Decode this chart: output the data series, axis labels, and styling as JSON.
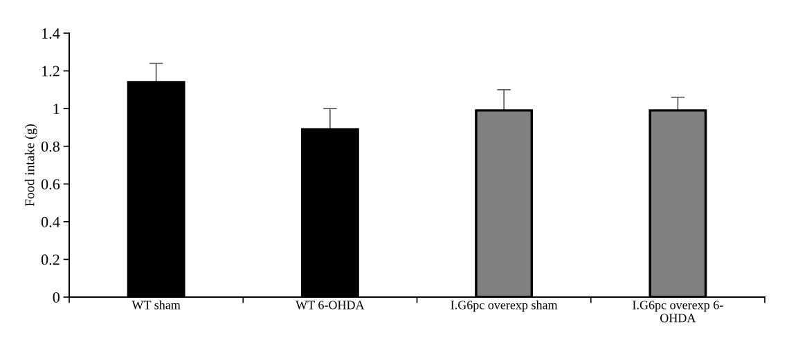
{
  "chart_data": {
    "type": "bar",
    "ylabel": "Food intake (g)",
    "categories": [
      "WT sham",
      "WT 6-OHDA",
      "I.G6pc overexp sham",
      "I.G6pc overexp 6-\nOHDA"
    ],
    "values": [
      1.14,
      0.89,
      0.99,
      0.99
    ],
    "colors": [
      "#000000",
      "#000000",
      "#808080",
      "#808080"
    ],
    "errors": [
      [
        1.14,
        1.24
      ],
      [
        0.89,
        1.0
      ],
      [
        0.99,
        1.1
      ],
      [
        0.99,
        1.06
      ]
    ],
    "ylim": [
      0,
      1.4
    ],
    "yticks": [
      0,
      0.2,
      0.4,
      0.6,
      0.8,
      1,
      1.2,
      1.4
    ],
    "grid": false
  }
}
